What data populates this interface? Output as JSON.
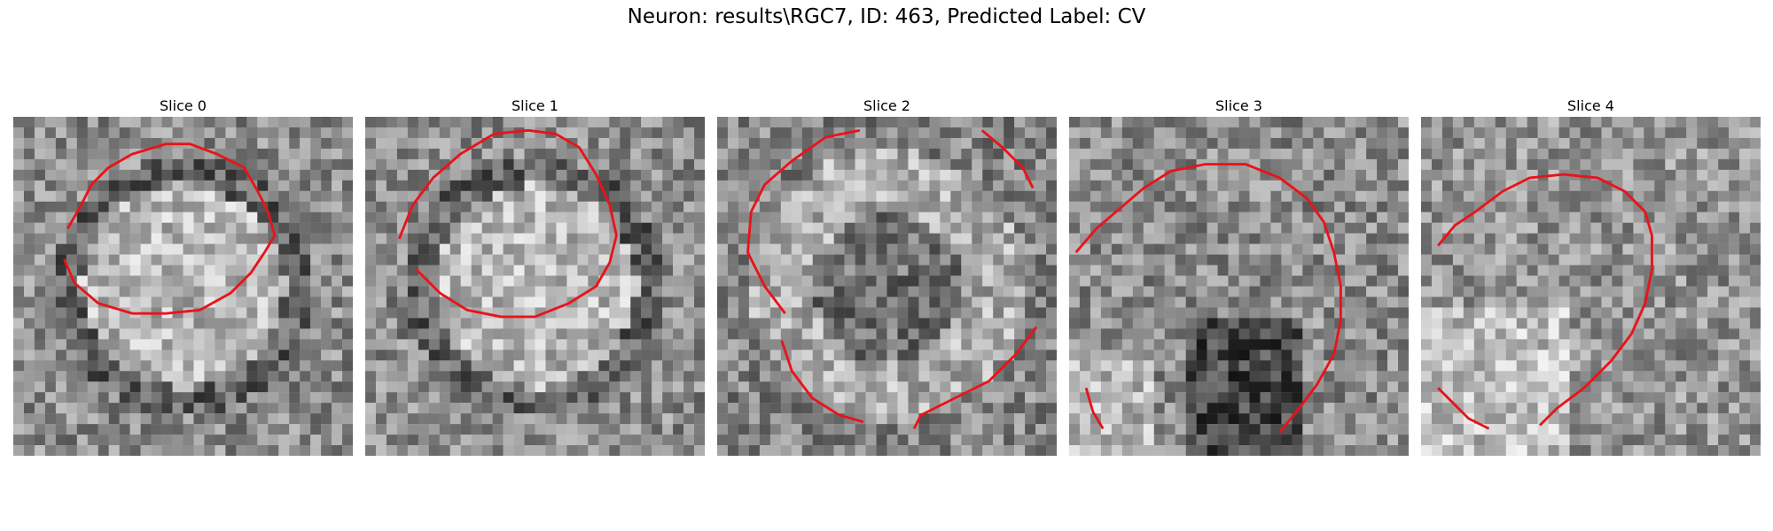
{
  "figure": {
    "title": "Neuron: results\\RGC7, ID: 463, Predicted Label: CV",
    "contour_color": "#e8141a"
  },
  "panels": [
    {
      "title": "Slice 0",
      "seed": 11,
      "brightness": "bright-center",
      "contours": [
        [
          [
            16,
            33
          ],
          [
            20,
            26
          ],
          [
            23,
            20
          ],
          [
            28,
            15
          ],
          [
            35,
            11
          ],
          [
            45,
            8
          ],
          [
            52,
            8
          ],
          [
            60,
            11
          ],
          [
            68,
            15
          ],
          [
            72,
            22
          ],
          [
            75,
            28
          ],
          [
            77,
            35
          ],
          [
            74,
            40
          ],
          [
            70,
            46
          ],
          [
            64,
            52
          ],
          [
            55,
            57
          ],
          [
            45,
            58
          ],
          [
            35,
            58
          ],
          [
            25,
            55
          ],
          [
            18,
            49
          ],
          [
            15,
            42
          ]
        ]
      ]
    },
    {
      "title": "Slice 1",
      "seed": 23,
      "brightness": "bright-center",
      "contours": [
        [
          [
            10,
            36
          ],
          [
            14,
            26
          ],
          [
            20,
            18
          ],
          [
            28,
            11
          ],
          [
            38,
            5
          ],
          [
            48,
            4
          ],
          [
            56,
            5
          ],
          [
            63,
            9
          ],
          [
            68,
            17
          ],
          [
            72,
            26
          ],
          [
            74,
            35
          ],
          [
            72,
            43
          ],
          [
            68,
            50
          ],
          [
            60,
            55
          ],
          [
            50,
            59
          ],
          [
            40,
            59
          ],
          [
            30,
            57
          ],
          [
            22,
            52
          ],
          [
            15,
            45
          ]
        ]
      ]
    },
    {
      "title": "Slice 2",
      "seed": 37,
      "brightness": "ring",
      "contours": [
        [
          [
            20,
            58
          ],
          [
            14,
            50
          ],
          [
            9,
            40
          ],
          [
            10,
            28
          ],
          [
            14,
            20
          ],
          [
            22,
            13
          ],
          [
            32,
            6
          ],
          [
            42,
            4
          ]
        ],
        [
          [
            78,
            4
          ],
          [
            84,
            9
          ],
          [
            90,
            15
          ],
          [
            93,
            21
          ]
        ],
        [
          [
            94,
            62
          ],
          [
            88,
            70
          ],
          [
            80,
            78
          ],
          [
            70,
            83
          ],
          [
            60,
            88
          ],
          [
            58,
            92
          ]
        ],
        [
          [
            43,
            90
          ],
          [
            36,
            88
          ],
          [
            28,
            83
          ],
          [
            22,
            75
          ],
          [
            19,
            66
          ]
        ]
      ]
    },
    {
      "title": "Slice 3",
      "seed": 53,
      "brightness": "dark-lower",
      "contours": [
        [
          [
            2,
            40
          ],
          [
            8,
            33
          ],
          [
            15,
            27
          ],
          [
            22,
            21
          ],
          [
            30,
            16
          ],
          [
            40,
            14
          ],
          [
            52,
            14
          ],
          [
            62,
            18
          ],
          [
            70,
            24
          ],
          [
            75,
            31
          ],
          [
            78,
            40
          ],
          [
            80,
            50
          ],
          [
            80,
            60
          ],
          [
            78,
            70
          ],
          [
            73,
            79
          ],
          [
            67,
            87
          ],
          [
            62,
            93
          ]
        ],
        [
          [
            5,
            80
          ],
          [
            7,
            87
          ],
          [
            10,
            92
          ]
        ]
      ]
    },
    {
      "title": "Slice 4",
      "seed": 71,
      "brightness": "bright-lower",
      "contours": [
        [
          [
            5,
            38
          ],
          [
            10,
            32
          ],
          [
            16,
            28
          ],
          [
            24,
            22
          ],
          [
            32,
            18
          ],
          [
            42,
            17
          ],
          [
            52,
            18
          ],
          [
            60,
            22
          ],
          [
            66,
            28
          ],
          [
            68,
            35
          ],
          [
            68,
            45
          ],
          [
            66,
            55
          ],
          [
            62,
            64
          ],
          [
            56,
            72
          ],
          [
            48,
            80
          ],
          [
            40,
            86
          ],
          [
            35,
            91
          ]
        ],
        [
          [
            5,
            80
          ],
          [
            10,
            85
          ],
          [
            14,
            89
          ],
          [
            20,
            92
          ]
        ]
      ]
    }
  ]
}
